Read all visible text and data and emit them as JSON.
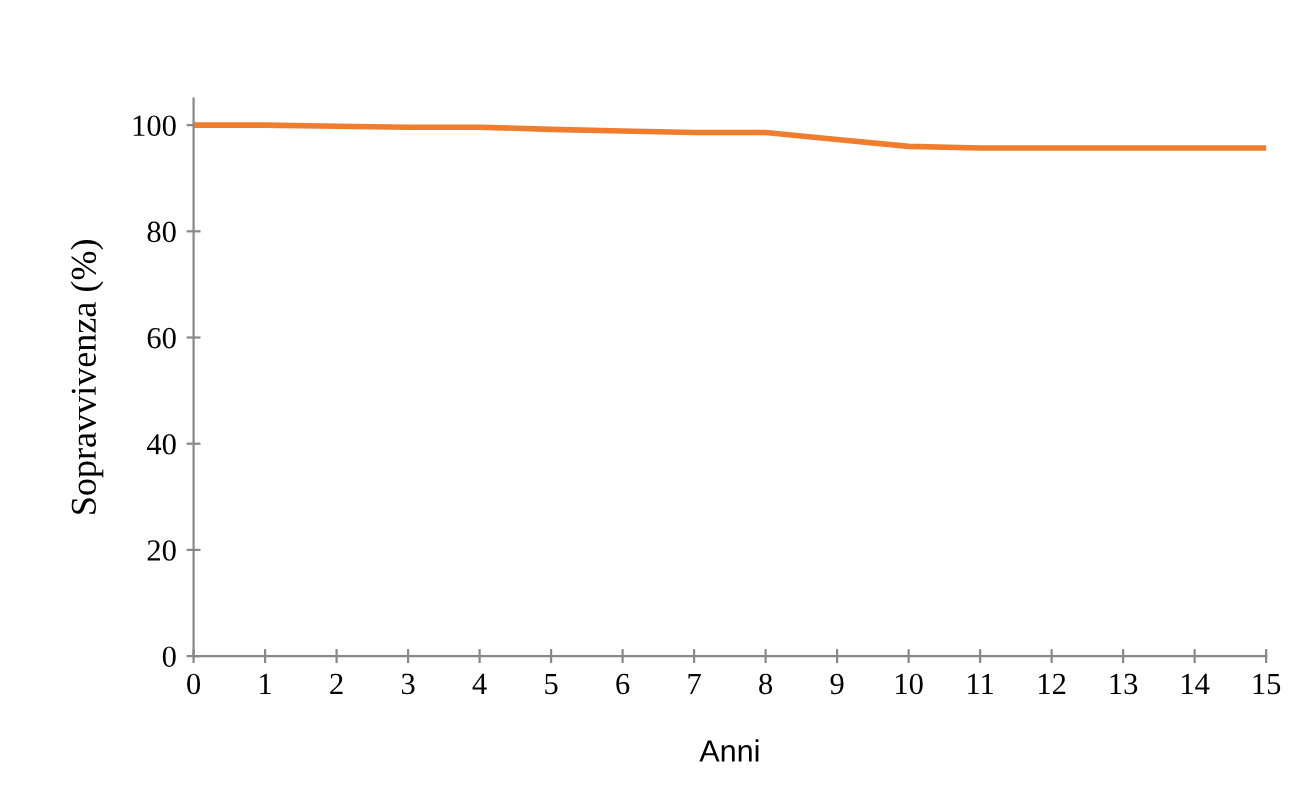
{
  "chart_data": {
    "type": "line",
    "xlabel": "Anni",
    "ylabel": "Sopravvivenza (%)",
    "x": [
      0,
      1,
      2,
      3,
      4,
      5,
      6,
      7,
      8,
      9,
      10,
      11,
      12,
      13,
      14,
      15
    ],
    "series": [
      {
        "color": "#f07d2e",
        "values": [
          100,
          100,
          99.8,
          99.6,
          99.6,
          99.2,
          98.9,
          98.6,
          98.6,
          97.3,
          96,
          95.7,
          95.7,
          95.7,
          95.7,
          95.7
        ]
      }
    ],
    "xlim": [
      0,
      15
    ],
    "xticks": [
      0,
      1,
      2,
      3,
      4,
      5,
      6,
      7,
      8,
      9,
      10,
      11,
      12,
      13,
      14,
      15
    ],
    "ylim": [
      0,
      105
    ],
    "yticks": [
      0,
      20,
      40,
      60,
      80,
      100
    ],
    "grid": false,
    "legend": false,
    "marker": "none",
    "line_style": "solid"
  }
}
